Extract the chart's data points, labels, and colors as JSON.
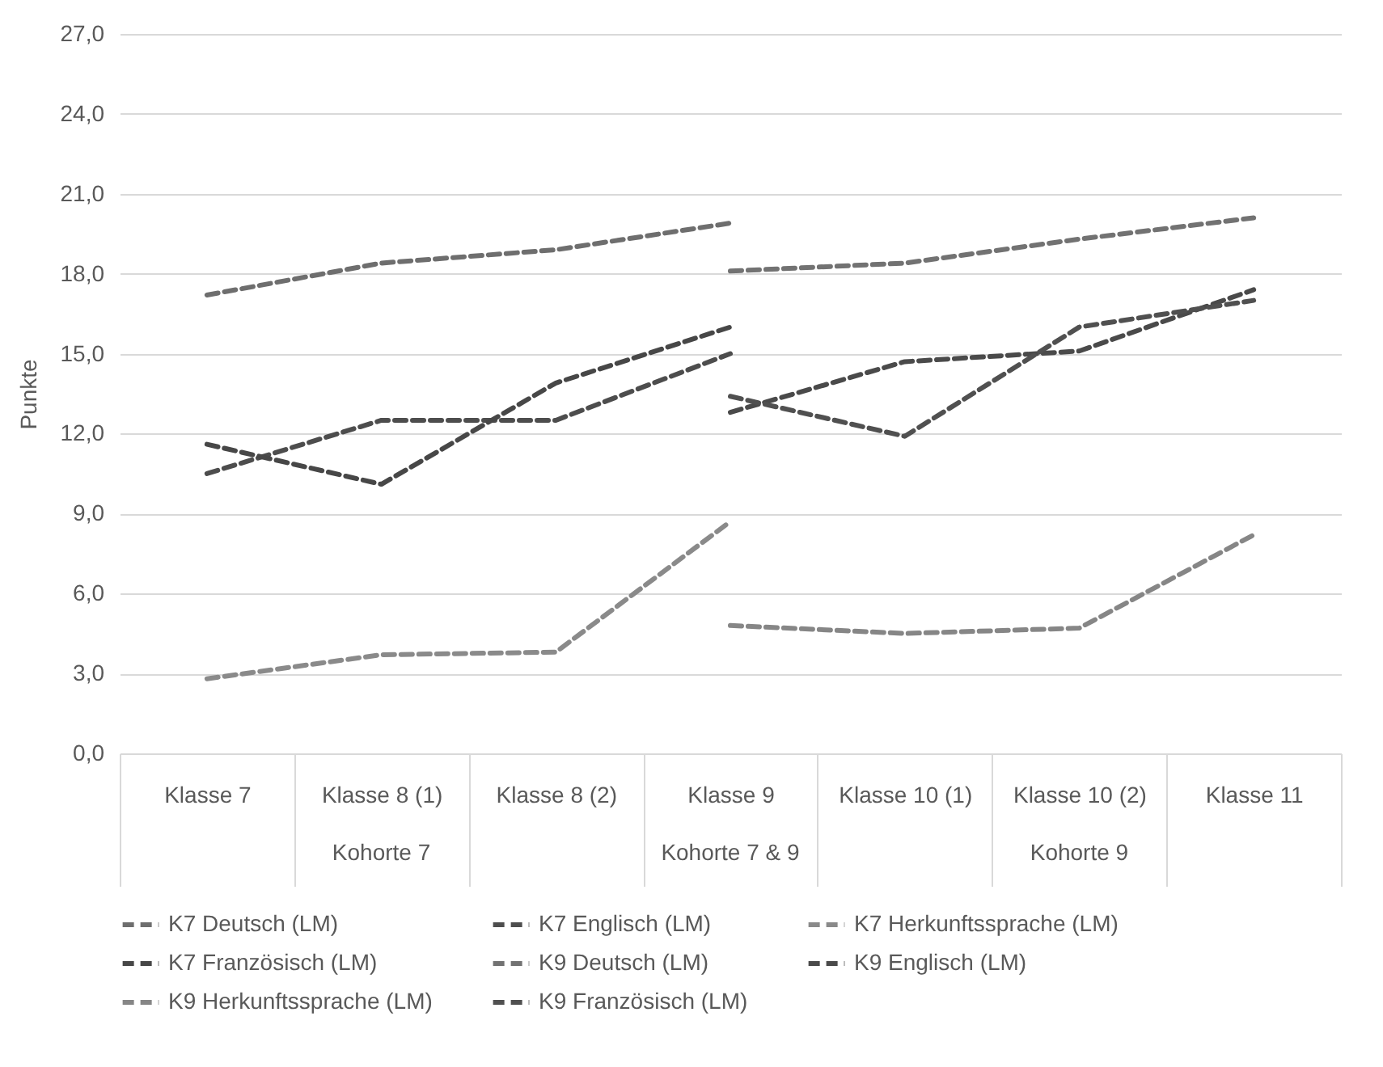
{
  "chart_data": {
    "type": "line",
    "ylabel": "Punkte",
    "categories": [
      "Klasse 7",
      "Klasse 8 (1)",
      "Klasse 8 (2)",
      "Klasse 9",
      "Klasse 10 (1)",
      "Klasse 10 (2)",
      "Klasse 11"
    ],
    "annotations": [
      "Kohorte 7",
      "Kohorte 7 & 9",
      "Kohorte 9"
    ],
    "ylim": [
      0,
      27
    ],
    "yticks": [
      {
        "value": 0,
        "label": "0,0"
      },
      {
        "value": 3,
        "label": "3,0"
      },
      {
        "value": 6,
        "label": "6,0"
      },
      {
        "value": 9,
        "label": "9,0"
      },
      {
        "value": 12,
        "label": "12,0"
      },
      {
        "value": 15,
        "label": "15,0"
      },
      {
        "value": 18,
        "label": "18,0"
      },
      {
        "value": 21,
        "label": "21,0"
      },
      {
        "value": 24,
        "label": "24,0"
      },
      {
        "value": 27,
        "label": "27,0"
      }
    ],
    "grid": "y",
    "legend": "bottom",
    "marker": "none",
    "line_style": "dashed",
    "series": [
      {
        "name": "K7 Deutsch (LM)",
        "color": "#6e6e6e",
        "values": [
          17.2,
          18.4,
          18.9,
          19.9,
          null,
          null,
          null
        ]
      },
      {
        "name": "K7 Englisch (LM)",
        "color": "#4d4d4d",
        "values": [
          10.5,
          12.5,
          12.5,
          15.0,
          null,
          null,
          null
        ]
      },
      {
        "name": "K7 Herkunftssprache (LM)",
        "color": "#8a8a8a",
        "values": [
          2.8,
          3.7,
          3.8,
          8.7,
          null,
          null,
          null
        ]
      },
      {
        "name": "K7 Französisch (LM)",
        "color": "#474747",
        "values": [
          11.6,
          10.1,
          13.9,
          16.0,
          null,
          null,
          null
        ]
      },
      {
        "name": "K9 Deutsch (LM)",
        "color": "#727272",
        "values": [
          null,
          null,
          null,
          18.1,
          18.4,
          19.3,
          20.1
        ]
      },
      {
        "name": "K9 Englisch (LM)",
        "color": "#4a4a4a",
        "values": [
          null,
          null,
          null,
          12.8,
          14.7,
          15.1,
          17.4
        ]
      },
      {
        "name": "K9 Herkunftssprache (LM)",
        "color": "#868686",
        "values": [
          null,
          null,
          null,
          4.8,
          4.5,
          4.7,
          8.2
        ]
      },
      {
        "name": "K9 Französisch (LM)",
        "color": "#505050",
        "values": [
          null,
          null,
          null,
          13.4,
          11.9,
          16.0,
          17.0
        ]
      }
    ]
  }
}
